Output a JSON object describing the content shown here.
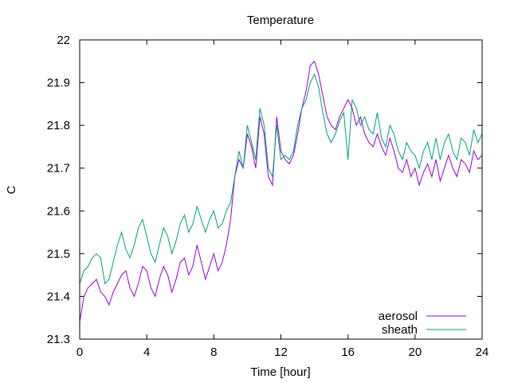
{
  "chart_data": {
    "type": "line",
    "title": "Temperature",
    "xlabel": "Time [hour]",
    "ylabel": "C",
    "xlim": [
      0,
      24
    ],
    "ylim": [
      21.3,
      22.0
    ],
    "x_ticks": [
      0,
      4,
      8,
      12,
      16,
      20,
      24
    ],
    "y_ticks": [
      21.3,
      21.4,
      21.5,
      21.6,
      21.7,
      21.8,
      21.9,
      22.0
    ],
    "x_tick_labels": [
      "0",
      "4",
      "8",
      "12",
      "16",
      "20",
      "24"
    ],
    "y_tick_labels": [
      "21.3",
      "21.4",
      "21.5",
      "21.6",
      "21.7",
      "21.8",
      "21.9",
      "22"
    ],
    "grid": false,
    "legend_position": "bottom-right",
    "series": [
      {
        "name": "aerosol",
        "color": "#9400d3",
        "x": [
          0.0,
          0.25,
          0.5,
          0.75,
          1.0,
          1.25,
          1.5,
          1.75,
          2.0,
          2.25,
          2.5,
          2.75,
          3.0,
          3.25,
          3.5,
          3.75,
          4.0,
          4.25,
          4.5,
          4.75,
          5.0,
          5.25,
          5.5,
          5.75,
          6.0,
          6.25,
          6.5,
          6.75,
          7.0,
          7.25,
          7.5,
          7.75,
          8.0,
          8.25,
          8.5,
          8.75,
          9.0,
          9.25,
          9.5,
          9.75,
          10.0,
          10.25,
          10.5,
          10.75,
          11.0,
          11.25,
          11.5,
          11.75,
          12.0,
          12.25,
          12.5,
          12.75,
          13.0,
          13.25,
          13.5,
          13.75,
          14.0,
          14.25,
          14.5,
          14.75,
          15.0,
          15.25,
          15.5,
          15.75,
          16.0,
          16.25,
          16.5,
          16.75,
          17.0,
          17.25,
          17.5,
          17.75,
          18.0,
          18.25,
          18.5,
          18.75,
          19.0,
          19.25,
          19.5,
          19.75,
          20.0,
          20.25,
          20.5,
          20.75,
          21.0,
          21.25,
          21.5,
          21.75,
          22.0,
          22.25,
          22.5,
          22.75,
          23.0,
          23.25,
          23.5,
          23.75,
          24.0
        ],
        "values": [
          21.34,
          21.4,
          21.42,
          21.43,
          21.44,
          21.41,
          21.4,
          21.38,
          21.41,
          21.43,
          21.45,
          21.46,
          21.42,
          21.4,
          21.43,
          21.47,
          21.46,
          21.42,
          21.4,
          21.44,
          21.47,
          21.45,
          21.41,
          21.44,
          21.48,
          21.49,
          21.45,
          21.47,
          21.52,
          21.48,
          21.44,
          21.47,
          21.5,
          21.46,
          21.48,
          21.52,
          21.58,
          21.68,
          21.72,
          21.7,
          21.78,
          21.75,
          21.7,
          21.82,
          21.78,
          21.68,
          21.66,
          21.82,
          21.74,
          21.72,
          21.71,
          21.73,
          21.78,
          21.84,
          21.88,
          21.94,
          21.95,
          21.92,
          21.87,
          21.82,
          21.8,
          21.79,
          21.82,
          21.84,
          21.86,
          21.84,
          21.8,
          21.82,
          21.78,
          21.76,
          21.75,
          21.78,
          21.75,
          21.73,
          21.77,
          21.74,
          21.7,
          21.69,
          21.72,
          21.68,
          21.7,
          21.66,
          21.69,
          21.71,
          21.68,
          21.72,
          21.67,
          21.7,
          21.73,
          21.7,
          21.68,
          21.72,
          21.71,
          21.69,
          21.74,
          21.72,
          21.73
        ]
      },
      {
        "name": "sheath",
        "color": "#009e73",
        "x": [
          0.0,
          0.25,
          0.5,
          0.75,
          1.0,
          1.25,
          1.5,
          1.75,
          2.0,
          2.25,
          2.5,
          2.75,
          3.0,
          3.25,
          3.5,
          3.75,
          4.0,
          4.25,
          4.5,
          4.75,
          5.0,
          5.25,
          5.5,
          5.75,
          6.0,
          6.25,
          6.5,
          6.75,
          7.0,
          7.25,
          7.5,
          7.75,
          8.0,
          8.25,
          8.5,
          8.75,
          9.0,
          9.25,
          9.5,
          9.75,
          10.0,
          10.25,
          10.5,
          10.75,
          11.0,
          11.25,
          11.5,
          11.75,
          12.0,
          12.25,
          12.5,
          12.75,
          13.0,
          13.25,
          13.5,
          13.75,
          14.0,
          14.25,
          14.5,
          14.75,
          15.0,
          15.25,
          15.5,
          15.75,
          16.0,
          16.25,
          16.5,
          16.75,
          17.0,
          17.25,
          17.5,
          17.75,
          18.0,
          18.25,
          18.5,
          18.75,
          19.0,
          19.25,
          19.5,
          19.75,
          20.0,
          20.25,
          20.5,
          20.75,
          21.0,
          21.25,
          21.5,
          21.75,
          22.0,
          22.25,
          22.5,
          22.75,
          23.0,
          23.25,
          23.5,
          23.75,
          24.0
        ],
        "values": [
          21.43,
          21.46,
          21.47,
          21.49,
          21.5,
          21.49,
          21.43,
          21.44,
          21.48,
          21.52,
          21.55,
          21.51,
          21.49,
          21.52,
          21.56,
          21.58,
          21.54,
          21.5,
          21.48,
          21.52,
          21.56,
          21.54,
          21.5,
          21.53,
          21.57,
          21.59,
          21.55,
          21.57,
          21.61,
          21.58,
          21.55,
          21.58,
          21.6,
          21.56,
          21.57,
          21.6,
          21.62,
          21.68,
          21.74,
          21.7,
          21.8,
          21.76,
          21.72,
          21.84,
          21.8,
          21.7,
          21.68,
          21.8,
          21.72,
          21.73,
          21.72,
          21.74,
          21.8,
          21.84,
          21.86,
          21.9,
          21.92,
          21.89,
          21.83,
          21.78,
          21.76,
          21.78,
          21.81,
          21.83,
          21.72,
          21.86,
          21.84,
          21.8,
          21.82,
          21.79,
          21.78,
          21.83,
          21.77,
          21.75,
          21.8,
          21.78,
          21.74,
          21.72,
          21.76,
          21.74,
          21.73,
          21.7,
          21.74,
          21.76,
          21.72,
          21.77,
          21.72,
          21.76,
          21.78,
          21.74,
          21.72,
          21.77,
          21.76,
          21.73,
          21.79,
          21.76,
          21.78
        ]
      }
    ]
  }
}
